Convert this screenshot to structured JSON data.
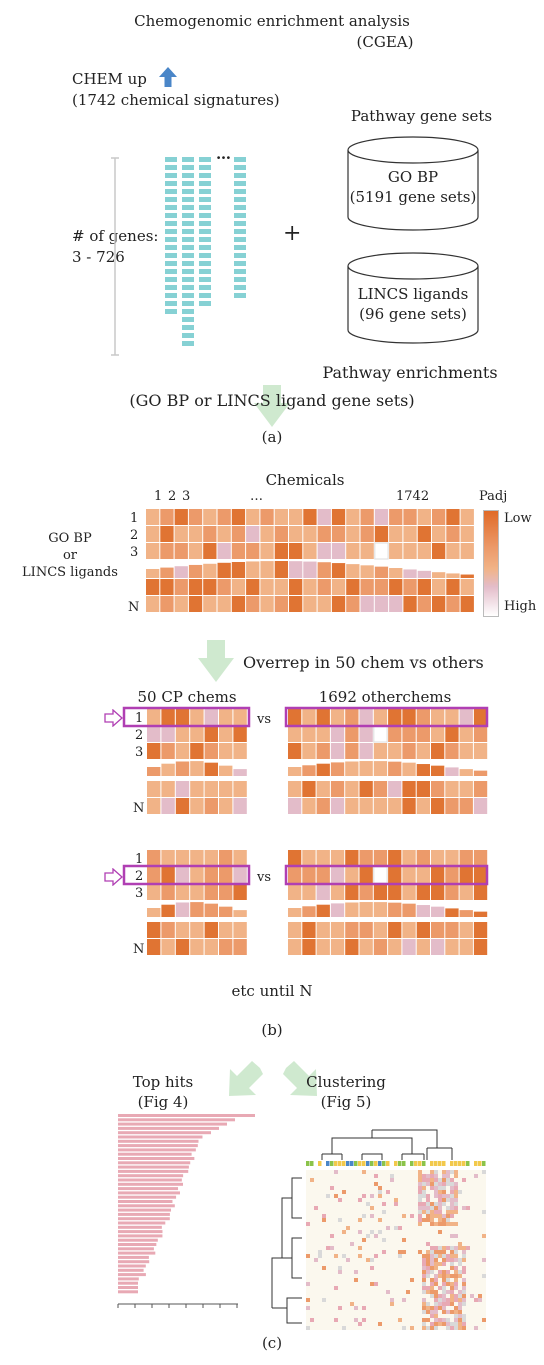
{
  "panel_a": {
    "title_line1": "Chemogenomic enrichment analysis",
    "title_line2": "(CGEA)",
    "chem_up": "CHEM up",
    "chem_signatures": "(1742 chemical signatures)",
    "num_genes": "# of genes:",
    "gene_range": "3 - 726",
    "ellipsis": "…",
    "plus": "+",
    "pathway_sets": "Pathway gene sets",
    "go_bp": "GO BP",
    "go_bp_count": "(5191 gene sets)",
    "lincs": "LINCS ligands",
    "lincs_count": "(96 gene sets)",
    "pathway_enrichments": "Pathway enrichments",
    "gene_set_options": "(GO BP or LINCS ligand gene sets)",
    "label": "(a)"
  },
  "panel_b": {
    "chemicals": "Chemicals",
    "col1": "1",
    "col2": "2",
    "col3": "3",
    "col_dots": "…",
    "col_last": "1742",
    "padj": "Padj",
    "low": "Low",
    "high": "High",
    "row_label_1": "GO BP",
    "row_label_2": "or",
    "row_label_3": "LINCS ligands",
    "row1": "1",
    "row2": "2",
    "row3": "3",
    "rowN": "N",
    "overrep": "Overrep in 50 chem vs others",
    "cp_chems": "50 CP chems",
    "other_chems": "1692 otherchems",
    "vs": "vs",
    "etc": "etc until N",
    "label": "(b)"
  },
  "panel_c": {
    "top_hits": "Top hits",
    "top_hits_ref": "(Fig 4)",
    "clustering": "Clustering",
    "clustering_ref": "(Fig 5)",
    "label": "(c)"
  },
  "colors": {
    "dark_orange": "#e07433",
    "mid_orange": "#ec9a6a",
    "light_orange": "#f1b387",
    "pink": "#e3bcc9",
    "white": "#ffffff",
    "highlight": "#b03fb3",
    "teal": "#86d1d4",
    "arrow_green": "#cfe9cf",
    "arrow_blue": "#4a86c8"
  }
}
